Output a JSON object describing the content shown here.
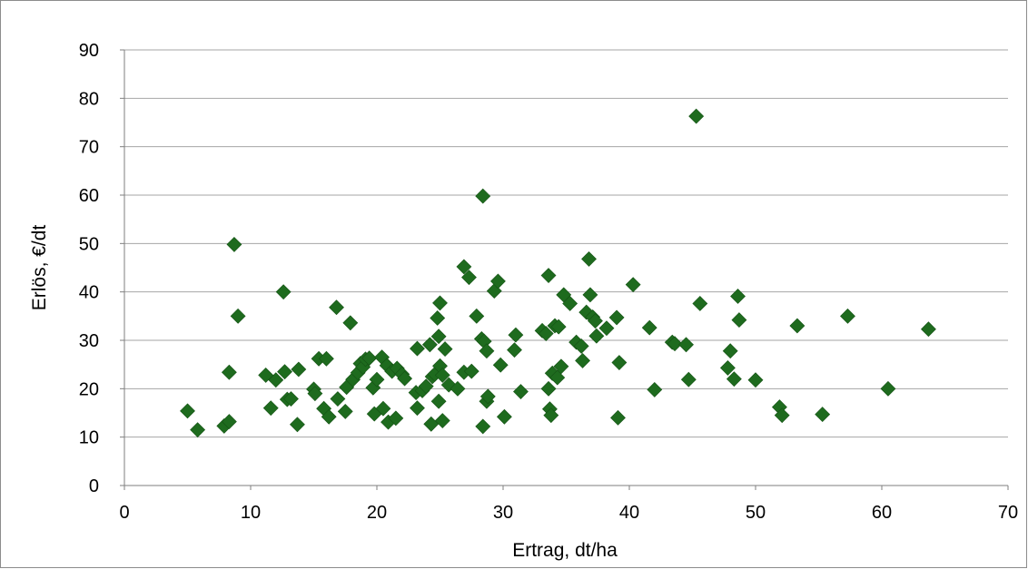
{
  "chart_data": {
    "type": "scatter",
    "title": "",
    "xlabel": "Ertrag, dt/ha",
    "ylabel": "Erlös, €/dt",
    "xlim": [
      0,
      70
    ],
    "ylim": [
      0,
      90
    ],
    "x_ticks": [
      "0",
      "10",
      "20",
      "30",
      "40",
      "50",
      "60",
      "70"
    ],
    "y_ticks": [
      "0",
      "10",
      "20",
      "30",
      "40",
      "50",
      "60",
      "70",
      "80",
      "90"
    ],
    "grid": "horizontal",
    "legend": "none",
    "marker": "diamond",
    "marker_color": "#1e6b1e",
    "gridline_color": "#a6a6a6",
    "axis_color": "#7f7f7f",
    "points": [
      [
        5.0,
        15.4
      ],
      [
        5.8,
        11.5
      ],
      [
        7.9,
        12.3
      ],
      [
        8.3,
        13.2
      ],
      [
        8.3,
        23.4
      ],
      [
        8.7,
        49.8
      ],
      [
        9.0,
        35.0
      ],
      [
        11.2,
        22.8
      ],
      [
        11.6,
        16.0
      ],
      [
        12.0,
        21.8
      ],
      [
        12.6,
        40.0
      ],
      [
        12.7,
        23.5
      ],
      [
        12.9,
        17.8
      ],
      [
        13.2,
        17.9
      ],
      [
        13.7,
        12.6
      ],
      [
        13.8,
        24.0
      ],
      [
        15.0,
        19.9
      ],
      [
        15.1,
        19.0
      ],
      [
        15.4,
        26.2
      ],
      [
        15.8,
        15.9
      ],
      [
        16.0,
        26.2
      ],
      [
        16.2,
        14.2
      ],
      [
        16.8,
        36.8
      ],
      [
        16.9,
        17.9
      ],
      [
        17.5,
        15.3
      ],
      [
        17.6,
        20.3
      ],
      [
        17.9,
        33.6
      ],
      [
        18.1,
        21.9
      ],
      [
        18.5,
        23.3
      ],
      [
        18.7,
        25.2
      ],
      [
        18.9,
        24.5
      ],
      [
        19.1,
        26.1
      ],
      [
        19.4,
        26.3
      ],
      [
        19.7,
        20.2
      ],
      [
        19.8,
        14.8
      ],
      [
        20.0,
        21.9
      ],
      [
        20.4,
        26.5
      ],
      [
        20.5,
        15.9
      ],
      [
        20.8,
        24.8
      ],
      [
        20.9,
        13.1
      ],
      [
        21.2,
        23.6
      ],
      [
        21.5,
        13.9
      ],
      [
        21.6,
        24.2
      ],
      [
        22.0,
        23.0
      ],
      [
        22.2,
        22.1
      ],
      [
        23.1,
        19.2
      ],
      [
        23.2,
        28.3
      ],
      [
        23.2,
        16.0
      ],
      [
        23.6,
        19.6
      ],
      [
        23.9,
        20.5
      ],
      [
        24.2,
        29.1
      ],
      [
        24.3,
        12.7
      ],
      [
        24.4,
        22.5
      ],
      [
        24.6,
        23.0
      ],
      [
        24.8,
        34.6
      ],
      [
        24.9,
        17.4
      ],
      [
        24.9,
        30.8
      ],
      [
        25.0,
        24.7
      ],
      [
        25.0,
        37.7
      ],
      [
        25.2,
        22.8
      ],
      [
        25.2,
        13.4
      ],
      [
        25.4,
        28.2
      ],
      [
        25.7,
        20.8
      ],
      [
        26.4,
        20.0
      ],
      [
        26.9,
        45.2
      ],
      [
        26.9,
        23.4
      ],
      [
        27.3,
        43.0
      ],
      [
        27.5,
        23.6
      ],
      [
        27.9,
        35.0
      ],
      [
        28.3,
        30.3
      ],
      [
        28.4,
        12.2
      ],
      [
        28.4,
        59.8
      ],
      [
        28.5,
        29.8
      ],
      [
        28.7,
        27.8
      ],
      [
        28.7,
        17.4
      ],
      [
        28.8,
        18.4
      ],
      [
        29.3,
        40.2
      ],
      [
        29.6,
        42.2
      ],
      [
        29.8,
        24.9
      ],
      [
        30.1,
        14.2
      ],
      [
        30.9,
        28.0
      ],
      [
        31.0,
        31.1
      ],
      [
        31.4,
        19.4
      ],
      [
        33.1,
        32.0
      ],
      [
        33.4,
        31.4
      ],
      [
        33.6,
        43.4
      ],
      [
        33.6,
        20.0
      ],
      [
        33.7,
        15.8
      ],
      [
        33.8,
        14.5
      ],
      [
        33.9,
        23.2
      ],
      [
        34.1,
        33.0
      ],
      [
        34.3,
        22.3
      ],
      [
        34.4,
        32.8
      ],
      [
        34.6,
        24.6
      ],
      [
        34.8,
        39.4
      ],
      [
        35.3,
        37.6
      ],
      [
        35.8,
        29.6
      ],
      [
        36.2,
        28.8
      ],
      [
        36.3,
        25.8
      ],
      [
        36.6,
        35.8
      ],
      [
        36.8,
        46.8
      ],
      [
        36.9,
        39.4
      ],
      [
        37.1,
        34.8
      ],
      [
        37.3,
        34.0
      ],
      [
        37.4,
        30.9
      ],
      [
        38.2,
        32.5
      ],
      [
        39.0,
        34.7
      ],
      [
        39.1,
        14.0
      ],
      [
        39.2,
        25.4
      ],
      [
        40.3,
        41.5
      ],
      [
        41.6,
        32.6
      ],
      [
        42.0,
        19.8
      ],
      [
        43.4,
        29.6
      ],
      [
        43.6,
        29.3
      ],
      [
        44.5,
        29.1
      ],
      [
        44.7,
        21.9
      ],
      [
        45.3,
        76.3
      ],
      [
        45.6,
        37.6
      ],
      [
        47.8,
        24.3
      ],
      [
        48.0,
        27.8
      ],
      [
        48.3,
        22.0
      ],
      [
        48.6,
        39.1
      ],
      [
        48.7,
        34.2
      ],
      [
        50.0,
        21.8
      ],
      [
        51.9,
        16.2
      ],
      [
        52.1,
        14.5
      ],
      [
        53.3,
        33.0
      ],
      [
        55.3,
        14.7
      ],
      [
        57.3,
        35.0
      ],
      [
        60.5,
        20.0
      ],
      [
        63.7,
        32.3
      ]
    ]
  }
}
